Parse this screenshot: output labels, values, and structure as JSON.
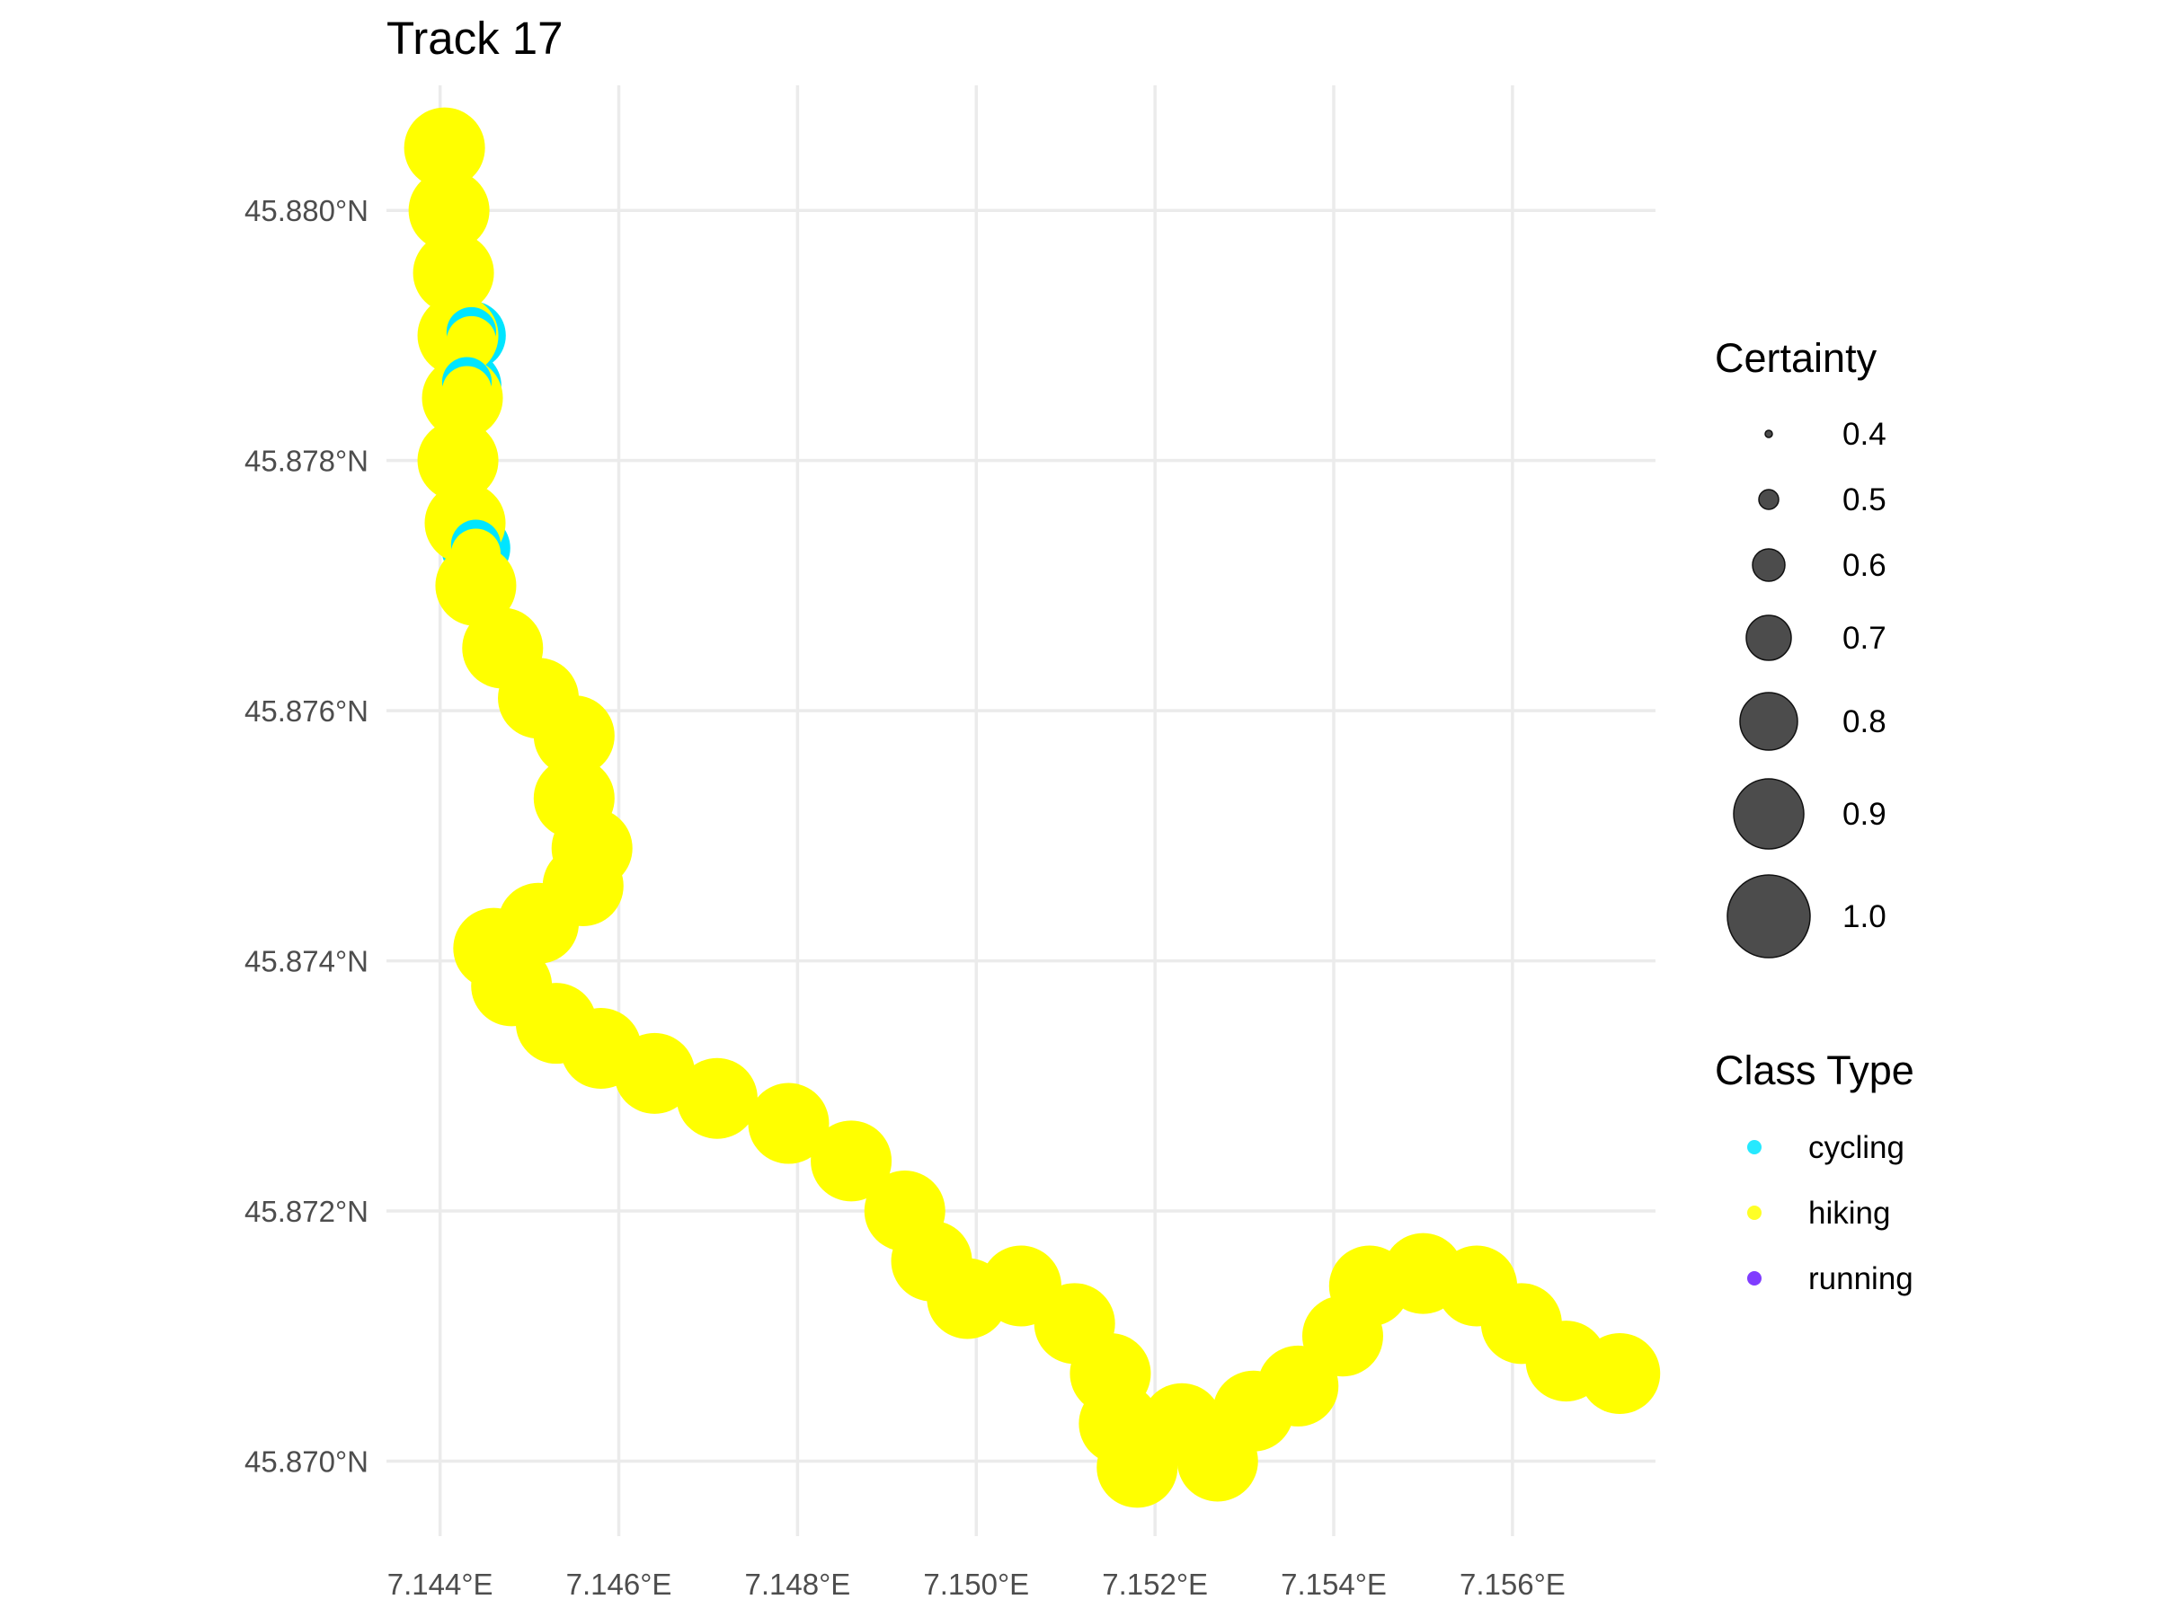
{
  "chart_data": {
    "type": "scatter",
    "title": "Track 17",
    "xlabel": "",
    "ylabel": "",
    "xlim": [
      7.1434,
      7.1576
    ],
    "ylim": [
      45.8694,
      45.881
    ],
    "x_ticks": [
      7.144,
      7.146,
      7.148,
      7.15,
      7.152,
      7.154,
      7.156
    ],
    "x_tick_labels": [
      "7.144°E",
      "7.146°E",
      "7.148°E",
      "7.150°E",
      "7.152°E",
      "7.154°E",
      "7.156°E"
    ],
    "y_ticks": [
      45.87,
      45.872,
      45.874,
      45.876,
      45.878,
      45.88
    ],
    "y_tick_labels": [
      "45.870°N",
      "45.872°N",
      "45.874°N",
      "45.876°N",
      "45.878°N",
      "45.880°N"
    ],
    "grid": true,
    "size_legend": {
      "title": "Certainty",
      "entries": [
        {
          "label": "0.4",
          "value": 0.4
        },
        {
          "label": "0.5",
          "value": 0.5
        },
        {
          "label": "0.6",
          "value": 0.6
        },
        {
          "label": "0.7",
          "value": 0.7
        },
        {
          "label": "0.8",
          "value": 0.8
        },
        {
          "label": "0.9",
          "value": 0.9
        },
        {
          "label": "1.0",
          "value": 1.0
        }
      ]
    },
    "color_legend": {
      "title": "Class Type",
      "entries": [
        {
          "label": "cycling",
          "color": "#00e5ff"
        },
        {
          "label": "hiking",
          "color": "#ffff00"
        },
        {
          "label": "running",
          "color": "#6a1bff"
        }
      ]
    },
    "legend_position": "right",
    "series": [
      {
        "name": "hiking",
        "color": "#ffff00",
        "points": [
          [
            7.14405,
            45.8805,
            1.0
          ],
          [
            7.1441,
            45.88,
            1.0
          ],
          [
            7.14415,
            45.8795,
            1.0
          ],
          [
            7.1442,
            45.879,
            1.0
          ],
          [
            7.14425,
            45.8785,
            1.0
          ],
          [
            7.1442,
            45.878,
            1.0
          ],
          [
            7.14428,
            45.8775,
            1.0
          ],
          [
            7.1444,
            45.877,
            1.0
          ],
          [
            7.1447,
            45.8765,
            1.0
          ],
          [
            7.1451,
            45.8761,
            1.0
          ],
          [
            7.1455,
            45.8758,
            1.0
          ],
          [
            7.1455,
            45.8753,
            1.0
          ],
          [
            7.1457,
            45.8749,
            1.0
          ],
          [
            7.1456,
            45.8746,
            1.0
          ],
          [
            7.1451,
            45.8743,
            1.0
          ],
          [
            7.1446,
            45.8741,
            1.0
          ],
          [
            7.1448,
            45.8738,
            1.0
          ],
          [
            7.1453,
            45.8735,
            1.0
          ],
          [
            7.1458,
            45.8733,
            1.0
          ],
          [
            7.1464,
            45.8731,
            1.0
          ],
          [
            7.1471,
            45.8729,
            1.0
          ],
          [
            7.1479,
            45.8727,
            1.0
          ],
          [
            7.1486,
            45.8724,
            1.0
          ],
          [
            7.1492,
            45.872,
            1.0
          ],
          [
            7.1495,
            45.8716,
            1.0
          ],
          [
            7.1499,
            45.8713,
            1.0
          ],
          [
            7.1505,
            45.8714,
            1.0
          ],
          [
            7.1511,
            45.8711,
            1.0
          ],
          [
            7.1515,
            45.8707,
            1.0
          ],
          [
            7.1516,
            45.8703,
            1.0
          ],
          [
            7.1518,
            45.86995,
            1.0
          ],
          [
            7.1523,
            45.8703,
            1.0
          ],
          [
            7.1527,
            45.87,
            1.0
          ],
          [
            7.1531,
            45.8704,
            1.0
          ],
          [
            7.1536,
            45.8706,
            1.0
          ],
          [
            7.1541,
            45.871,
            1.0
          ],
          [
            7.1544,
            45.8714,
            1.0
          ],
          [
            7.155,
            45.8715,
            1.0
          ],
          [
            7.1556,
            45.8714,
            1.0
          ],
          [
            7.1561,
            45.8711,
            1.0
          ],
          [
            7.1566,
            45.8708,
            1.0
          ],
          [
            7.1572,
            45.8707,
            1.0
          ]
        ]
      },
      {
        "name": "cycling",
        "color": "#00e5ff",
        "points": [
          [
            7.14435,
            45.879,
            0.9
          ],
          [
            7.1443,
            45.8786,
            0.9
          ],
          [
            7.1444,
            45.8773,
            0.9
          ]
        ]
      }
    ]
  }
}
